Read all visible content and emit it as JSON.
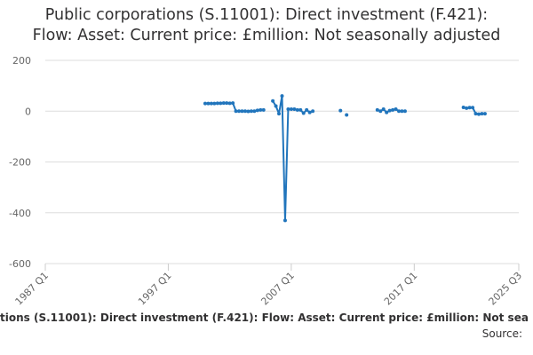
{
  "title_line1": "Public corporations (S.11001): Direct investment (F.421):",
  "title_line2": "Flow: Asset: Current price: £million: Not seasonally adjusted",
  "series_title": "rations (S.11001): Direct investment (F.421): Flow: Asset: Current price: £million: Not sea",
  "source_label": "Source:",
  "colors": {
    "series": "#2175bc",
    "grid": "#dddddd",
    "axis_text": "#666666"
  },
  "chart_data": {
    "type": "line",
    "title": "Public corporations (S.11001): Direct investment (F.421): Flow: Asset: Current price: £million: Not seasonally adjusted",
    "xlabel": "",
    "ylabel": "",
    "ylim": [
      -600,
      200
    ],
    "yticks": [
      200,
      0,
      -200,
      -400,
      -600
    ],
    "xlim": [
      1987.0,
      2025.5
    ],
    "xticks": [
      {
        "label": "1987 Q1",
        "t": 1987.0
      },
      {
        "label": "1997 Q1",
        "t": 1997.0
      },
      {
        "label": "2007 Q1",
        "t": 2007.0
      },
      {
        "label": "2017 Q1",
        "t": 2017.0
      },
      {
        "label": "2025 Q3",
        "t": 2025.5
      }
    ],
    "grid": true,
    "legend": "none",
    "segments": [
      {
        "start": 2000.0,
        "values": [
          30,
          30,
          30,
          30,
          31,
          31,
          32,
          32,
          31,
          32,
          0,
          0,
          0,
          0,
          -1,
          0,
          0,
          3,
          5,
          5
        ]
      },
      {
        "start": 2005.5,
        "values": [
          40,
          20,
          -10,
          60,
          -430,
          8,
          8,
          8,
          5,
          5,
          -8,
          5,
          -5,
          0
        ]
      },
      {
        "start": 2011.0,
        "values": [
          2
        ]
      },
      {
        "start": 2011.5,
        "values": [
          -15
        ]
      },
      {
        "start": 2014.0,
        "values": [
          5,
          0,
          8,
          -5,
          2,
          5,
          8,
          0,
          0,
          0
        ]
      },
      {
        "start": 2021.0,
        "values": [
          15,
          12,
          14,
          14,
          -10,
          -12,
          -10,
          -10
        ]
      }
    ]
  }
}
